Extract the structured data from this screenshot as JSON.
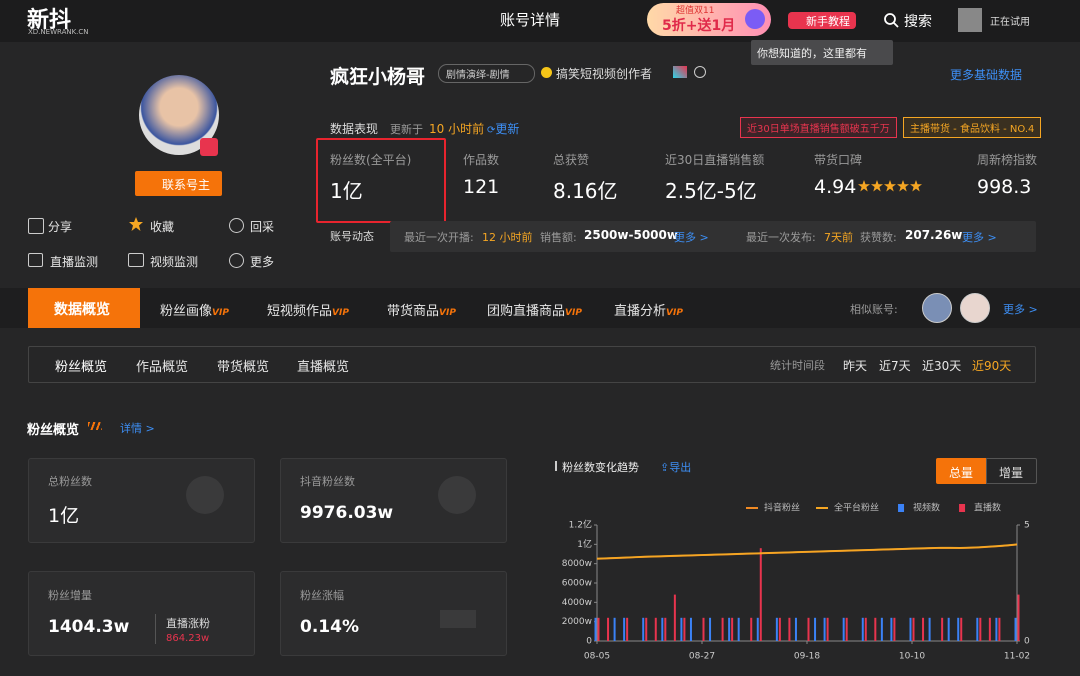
{
  "header": {
    "logo": "新抖",
    "logo_sub": "XD.NEWRANK.CN",
    "page_title": "账号详情",
    "promo_top": "超值双11",
    "promo_main": "5折+送1月",
    "tutorial": "新手教程",
    "search": "搜索",
    "user_status": "正在试用",
    "tooltip": "你想知道的，这里都有"
  },
  "profile": {
    "contact": "联系号主",
    "actions": [
      "分享",
      "收藏",
      "回采",
      "直播监测",
      "视频监测",
      "更多"
    ],
    "name": "疯狂小杨哥",
    "tag": "剧情演绎-剧情",
    "verified": "搞笑短视频创作者",
    "more_info": "更多基础数据"
  },
  "performance": {
    "label": "数据表现",
    "updated_prefix": "更新于",
    "updated_time": "10 小时前",
    "refresh": "更新",
    "badges": [
      "近30日单场直播销售额破五千万",
      "主播带货 - 食品饮料 - NO.4"
    ],
    "stats": [
      {
        "label": "粉丝数(全平台)",
        "value": "1亿"
      },
      {
        "label": "作品数",
        "value": "121"
      },
      {
        "label": "总获赞",
        "value": "8.16亿"
      },
      {
        "label": "近30日直播销售额",
        "value": "2.5亿-5亿"
      },
      {
        "label": "带货口碑",
        "value": "4.94"
      },
      {
        "label": "周新榜指数",
        "value": "998.3"
      }
    ]
  },
  "activity": {
    "label": "账号动态",
    "live": {
      "label": "最近一次开播:",
      "time": "12 小时前",
      "metric_label": "销售额:",
      "metric": "2500w-5000w",
      "more": "更多 >"
    },
    "post": {
      "label": "最近一次发布:",
      "time": "7天前",
      "metric_label": "获赞数:",
      "metric": "207.26w",
      "more": "更多 >"
    }
  },
  "tabs": {
    "items": [
      {
        "label": "数据概览"
      },
      {
        "label": "粉丝画像",
        "badge": "VIP"
      },
      {
        "label": "短视频作品",
        "badge": "VIP"
      },
      {
        "label": "带货商品",
        "badge": "VIP"
      },
      {
        "label": "团购直播商品",
        "badge": "VIP"
      },
      {
        "label": "直播分析",
        "badge": "VIP"
      }
    ],
    "similar": "相似账号:",
    "more": "更多 >"
  },
  "subtabs": {
    "items": [
      "粉丝概览",
      "作品概览",
      "带货概览",
      "直播概览"
    ],
    "period_label": "统计时间段",
    "periods": [
      "昨天",
      "近7天",
      "近30天",
      "近90天"
    ]
  },
  "fan_overview": {
    "title": "粉丝概览",
    "detail": "详情 >",
    "cards": [
      {
        "label": "总粉丝数",
        "value": "1亿"
      },
      {
        "label": "抖音粉丝数",
        "value": "9976.03w"
      },
      {
        "label": "粉丝增量",
        "value": "1404.3w",
        "sub_label": "直播涨粉",
        "sub_value": "864.23w"
      },
      {
        "label": "粉丝涨幅",
        "value": "0.14%"
      }
    ]
  },
  "trend_chart": {
    "type": "line",
    "title": "粉丝数变化趋势",
    "export": "导出",
    "modes": [
      "总量",
      "增量"
    ],
    "x": [
      "08-05",
      null,
      null,
      null,
      null,
      null,
      null,
      null,
      null,
      null,
      null,
      "08-27",
      null,
      null,
      null,
      null,
      null,
      null,
      null,
      null,
      null,
      null,
      "09-18",
      null,
      null,
      null,
      null,
      null,
      null,
      null,
      null,
      null,
      null,
      "10-10",
      null,
      null,
      null,
      null,
      null,
      null,
      null,
      null,
      null,
      null,
      "11-02"
    ],
    "series": [
      {
        "name": "抖音粉丝",
        "color": "#f08a24",
        "type": "line",
        "values": [
          8500,
          8540,
          8580,
          8620,
          8660,
          8700,
          8730,
          8760,
          8790,
          8820,
          8850,
          8880,
          8910,
          8940,
          8970,
          9000,
          9030,
          9060,
          9090,
          9120,
          9150,
          9180,
          9210,
          9240,
          9270,
          9300,
          9330,
          9360,
          9390,
          9420,
          9450,
          9480,
          9510,
          9540,
          9570,
          9600,
          9630,
          9620,
          9610,
          9640,
          9680,
          9740,
          9800,
          9880,
          9976
        ]
      },
      {
        "name": "全平台粉丝",
        "color": "#f5a623",
        "type": "line",
        "values": [
          8520,
          8560,
          8600,
          8640,
          8680,
          8720,
          8750,
          8780,
          8810,
          8840,
          8870,
          8900,
          8930,
          8960,
          8990,
          9020,
          9050,
          9080,
          9110,
          9140,
          9170,
          9200,
          9230,
          9260,
          9290,
          9320,
          9350,
          9380,
          9410,
          9440,
          9470,
          9500,
          9530,
          9560,
          9590,
          9620,
          9650,
          9640,
          9630,
          9660,
          9700,
          9760,
          9820,
          9900,
          10000
        ]
      },
      {
        "name": "视频数",
        "color": "#3b82f6",
        "type": "bar",
        "axis": "y2",
        "values": [
          1,
          0,
          1,
          1,
          0,
          1,
          0,
          1,
          0,
          1,
          1,
          0,
          1,
          0,
          1,
          1,
          0,
          1,
          0,
          1,
          0,
          1,
          0,
          1,
          1,
          0,
          1,
          0,
          1,
          0,
          1,
          1,
          0,
          1,
          0,
          1,
          0,
          1,
          1,
          0,
          1,
          0,
          1,
          0,
          1
        ]
      },
      {
        "name": "直播数",
        "color": "#e8344e",
        "type": "bar",
        "axis": "y2",
        "values": [
          1,
          1,
          0,
          1,
          0,
          1,
          1,
          1,
          2,
          1,
          0,
          1,
          0,
          1,
          1,
          0,
          1,
          4,
          0,
          1,
          1,
          0,
          1,
          0,
          1,
          0,
          1,
          0,
          1,
          1,
          0,
          1,
          0,
          1,
          1,
          0,
          1,
          0,
          1,
          0,
          1,
          1,
          1,
          0,
          2
        ]
      }
    ],
    "ylim": [
      0,
      12000
    ],
    "yticks": [
      0,
      {
        "value": 2000,
        "label": "2000w"
      },
      {
        "value": 4000,
        "label": "4000w"
      },
      {
        "value": 6000,
        "label": "6000w"
      },
      {
        "value": 8000,
        "label": "8000w"
      },
      {
        "value": 10000,
        "label": "1亿"
      },
      {
        "value": 12000,
        "label": "1.2亿"
      }
    ],
    "y2lim": [
      0,
      5
    ],
    "y2ticks": [
      0,
      5
    ]
  }
}
